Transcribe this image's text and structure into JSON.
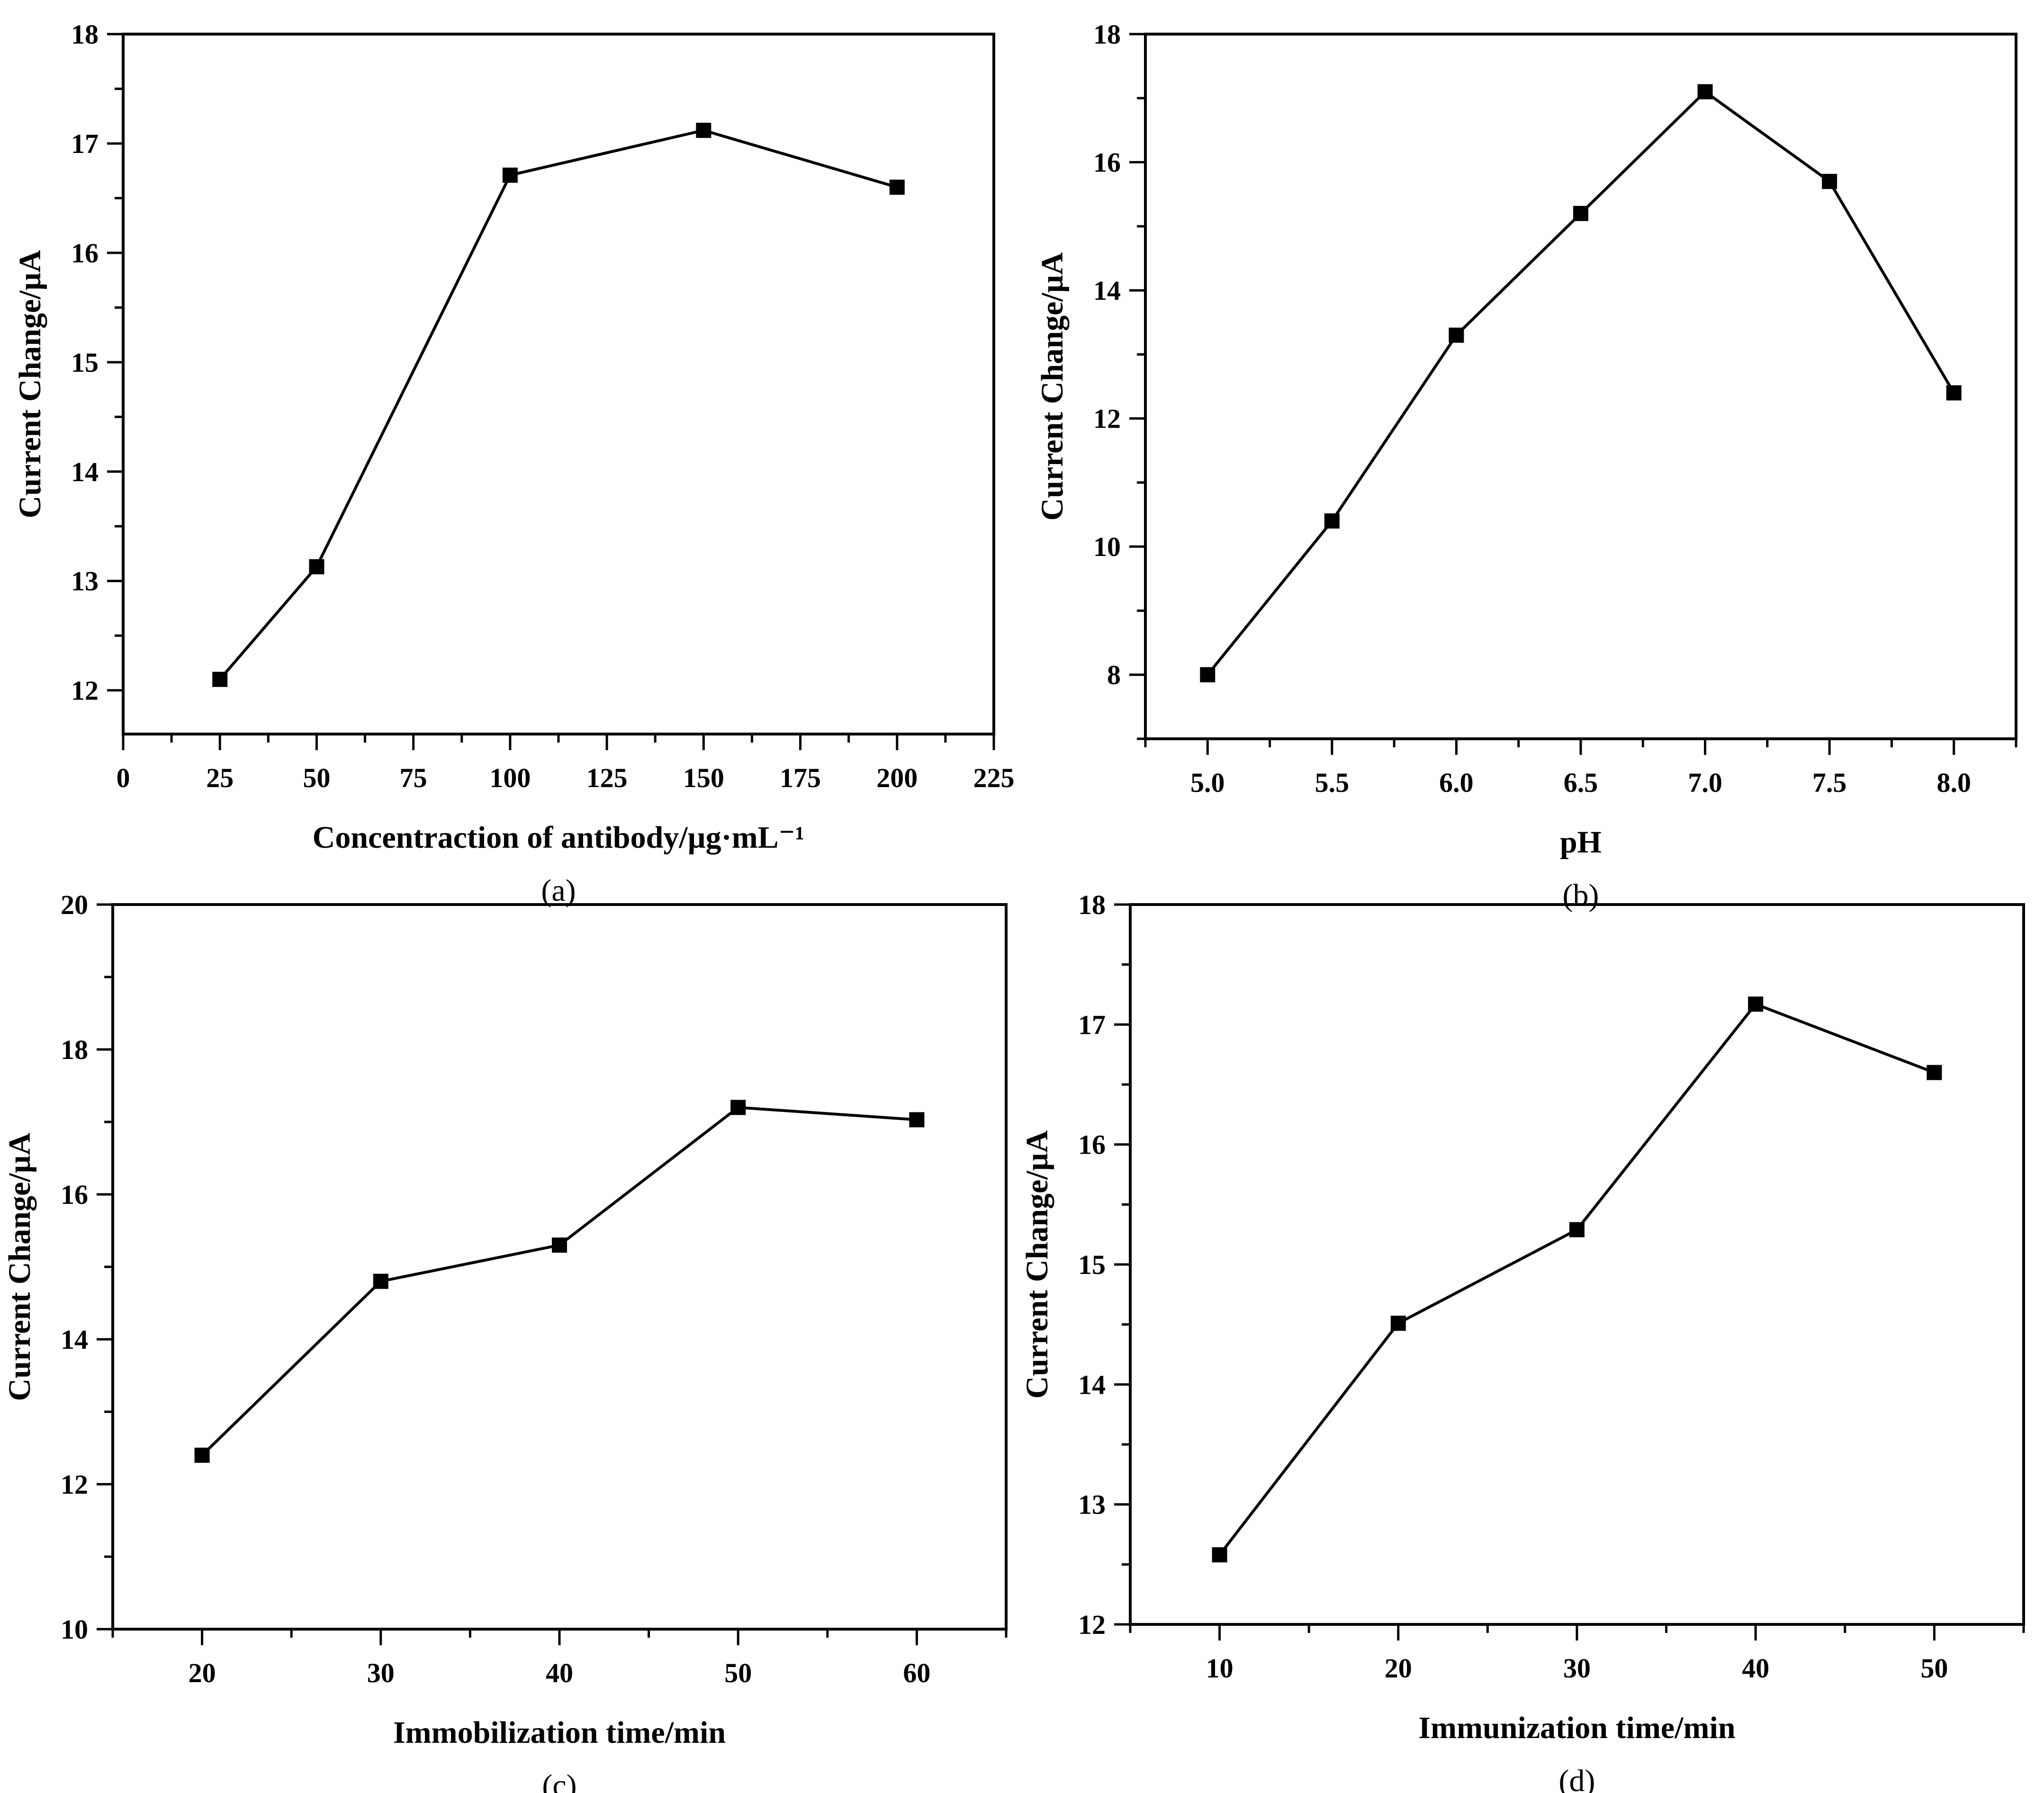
{
  "colors": {
    "line": "#000000",
    "marker": "#000000",
    "background": "#ffffff"
  },
  "chart_data": [
    {
      "type": "line",
      "panel": "(a)",
      "xlabel": "Concentraction of antibody/µg·mL⁻¹",
      "ylabel": "Current Change/µA",
      "xlim": [
        0,
        225
      ],
      "ylim": [
        11.6,
        18
      ],
      "x_ticks": [
        0,
        25,
        50,
        75,
        100,
        125,
        150,
        175,
        200,
        225
      ],
      "x_tick_labels": [
        "0",
        "25",
        "50",
        "75",
        "100",
        "125",
        "150",
        "175",
        "200",
        "225"
      ],
      "x_minor_step": 12.5,
      "y_ticks": [
        12,
        13,
        14,
        15,
        16,
        17,
        18
      ],
      "y_tick_labels": [
        "12",
        "13",
        "14",
        "15",
        "16",
        "17",
        "18"
      ],
      "y_minor_step": 0.5,
      "x": [
        25,
        50,
        100,
        150,
        200
      ],
      "y": [
        12.1,
        13.13,
        16.71,
        17.12,
        16.6
      ],
      "marker": "square"
    },
    {
      "type": "line",
      "panel": "(b)",
      "xlabel": "pH",
      "ylabel": "Current Change/µA",
      "xlim": [
        4.75,
        8.25
      ],
      "ylim": [
        7,
        18
      ],
      "x_ticks": [
        5.0,
        5.5,
        6.0,
        6.5,
        7.0,
        7.5,
        8.0
      ],
      "x_tick_labels": [
        "5.0",
        "5.5",
        "6.0",
        "6.5",
        "7.0",
        "7.5",
        "8.0"
      ],
      "x_minor_step": 0.25,
      "y_ticks": [
        8,
        10,
        12,
        14,
        16,
        18
      ],
      "y_tick_labels": [
        "8",
        "10",
        "12",
        "14",
        "16",
        "18"
      ],
      "y_minor_step": 1,
      "x": [
        5.0,
        5.5,
        6.0,
        6.5,
        7.0,
        7.5,
        8.0
      ],
      "y": [
        8.0,
        10.4,
        13.3,
        15.2,
        17.1,
        15.7,
        12.4
      ],
      "marker": "square"
    },
    {
      "type": "line",
      "panel": "(c)",
      "xlabel": "Immobilization time/min",
      "ylabel": "Current Change/µA",
      "xlim": [
        15,
        65
      ],
      "ylim": [
        10,
        20
      ],
      "x_ticks": [
        20,
        30,
        40,
        50,
        60
      ],
      "x_tick_labels": [
        "20",
        "30",
        "40",
        "50",
        "60"
      ],
      "x_minor_step": 5,
      "y_ticks": [
        10,
        12,
        14,
        16,
        18,
        20
      ],
      "y_tick_labels": [
        "10",
        "12",
        "14",
        "16",
        "18",
        "20"
      ],
      "y_minor_step": 1,
      "x": [
        20,
        30,
        40,
        50,
        60
      ],
      "y": [
        12.4,
        14.8,
        15.3,
        17.2,
        17.03
      ],
      "marker": "square"
    },
    {
      "type": "line",
      "panel": "(d)",
      "xlabel": "Immunization time/min",
      "ylabel": "Current Change/µA",
      "xlim": [
        5,
        55
      ],
      "ylim": [
        12,
        18
      ],
      "x_ticks": [
        10,
        20,
        30,
        40,
        50
      ],
      "x_tick_labels": [
        "10",
        "20",
        "30",
        "40",
        "50"
      ],
      "x_minor_step": 5,
      "y_ticks": [
        12,
        13,
        14,
        15,
        16,
        17,
        18
      ],
      "y_tick_labels": [
        "12",
        "13",
        "14",
        "15",
        "16",
        "17",
        "18"
      ],
      "y_minor_step": 0.5,
      "x": [
        10,
        20,
        30,
        40,
        50
      ],
      "y": [
        12.58,
        14.51,
        15.29,
        17.17,
        16.6
      ],
      "marker": "square"
    }
  ]
}
